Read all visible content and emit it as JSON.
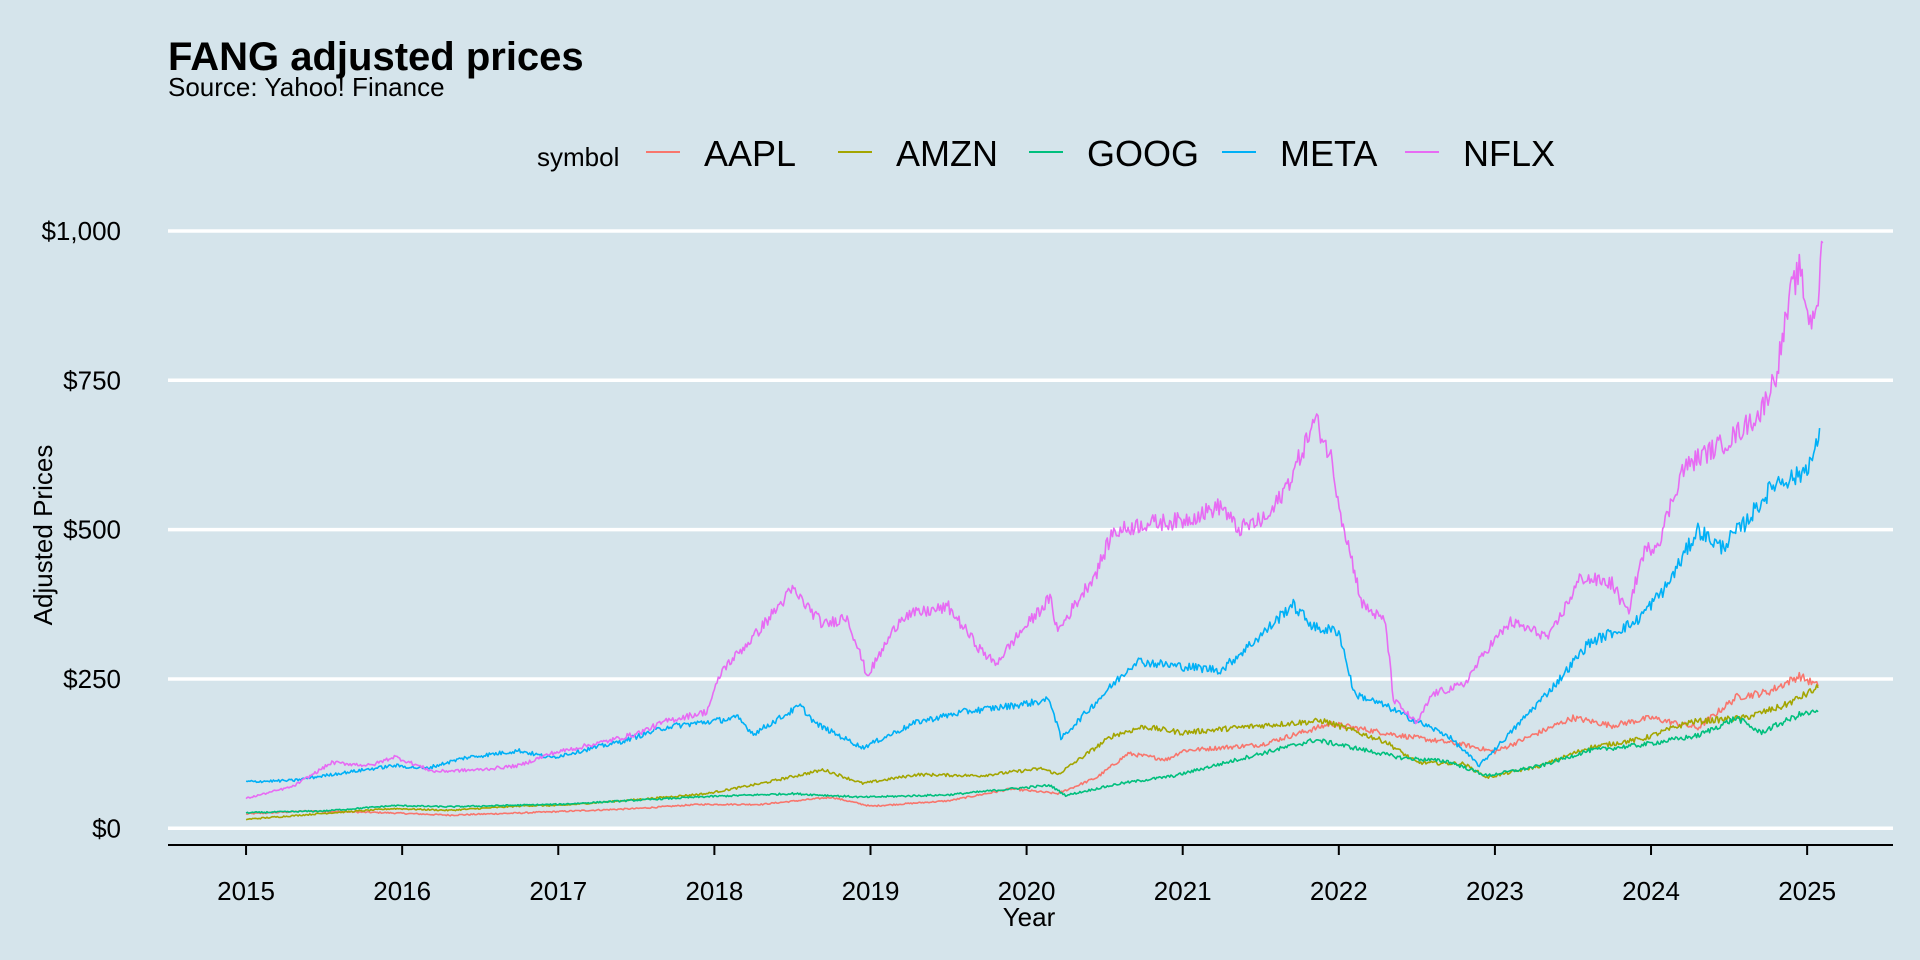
{
  "chart_data": {
    "type": "line",
    "title": "FANG adjusted prices",
    "subtitle": "Source: Yahoo! Finance",
    "xlabel": "Year",
    "ylabel": "Adjusted Prices",
    "legend_title": "symbol",
    "legend_position": "top",
    "xlim": [
      2014.5,
      2025.55
    ],
    "ylim": [
      -28,
      1010
    ],
    "x_ticks": [
      2015,
      2016,
      2017,
      2018,
      2019,
      2020,
      2021,
      2022,
      2023,
      2024,
      2025
    ],
    "x_tick_labels": [
      "2015",
      "2016",
      "2017",
      "2018",
      "2019",
      "2020",
      "2021",
      "2022",
      "2023",
      "2024",
      "2025"
    ],
    "y_ticks": [
      0,
      250,
      500,
      750,
      1000
    ],
    "y_tick_labels": [
      "$0",
      "$250",
      "$500",
      "$750",
      "$1,000"
    ],
    "grid": "horizontal",
    "series": [
      {
        "name": "AAPL",
        "color": "#F8766D",
        "points": [
          [
            2015.0,
            24
          ],
          [
            2015.4,
            29
          ],
          [
            2015.9,
            26
          ],
          [
            2016.3,
            22
          ],
          [
            2016.8,
            26
          ],
          [
            2017.0,
            28
          ],
          [
            2017.5,
            33
          ],
          [
            2017.9,
            40
          ],
          [
            2018.3,
            40
          ],
          [
            2018.75,
            52
          ],
          [
            2019.0,
            37
          ],
          [
            2019.5,
            46
          ],
          [
            2019.9,
            66
          ],
          [
            2020.2,
            58
          ],
          [
            2020.45,
            85
          ],
          [
            2020.65,
            125
          ],
          [
            2020.9,
            115
          ],
          [
            2021.0,
            130
          ],
          [
            2021.5,
            140
          ],
          [
            2021.95,
            175
          ],
          [
            2022.4,
            155
          ],
          [
            2022.8,
            140
          ],
          [
            2023.0,
            128
          ],
          [
            2023.5,
            185
          ],
          [
            2023.75,
            172
          ],
          [
            2024.0,
            185
          ],
          [
            2024.3,
            168
          ],
          [
            2024.55,
            220
          ],
          [
            2024.75,
            228
          ],
          [
            2024.95,
            255
          ],
          [
            2025.07,
            238
          ]
        ]
      },
      {
        "name": "AMZN",
        "color": "#A3A500",
        "points": [
          [
            2015.0,
            15
          ],
          [
            2015.5,
            25
          ],
          [
            2015.95,
            33
          ],
          [
            2016.3,
            30
          ],
          [
            2016.8,
            38
          ],
          [
            2017.0,
            38
          ],
          [
            2017.5,
            48
          ],
          [
            2017.95,
            58
          ],
          [
            2018.3,
            75
          ],
          [
            2018.7,
            98
          ],
          [
            2018.95,
            75
          ],
          [
            2019.3,
            90
          ],
          [
            2019.7,
            88
          ],
          [
            2020.1,
            100
          ],
          [
            2020.2,
            90
          ],
          [
            2020.55,
            155
          ],
          [
            2020.75,
            170
          ],
          [
            2021.0,
            160
          ],
          [
            2021.5,
            172
          ],
          [
            2021.9,
            180
          ],
          [
            2022.3,
            145
          ],
          [
            2022.5,
            110
          ],
          [
            2022.8,
            108
          ],
          [
            2022.95,
            85
          ],
          [
            2023.3,
            105
          ],
          [
            2023.6,
            135
          ],
          [
            2023.95,
            150
          ],
          [
            2024.25,
            178
          ],
          [
            2024.6,
            185
          ],
          [
            2024.85,
            205
          ],
          [
            2025.07,
            235
          ]
        ]
      },
      {
        "name": "GOOG",
        "color": "#00BF7D",
        "points": [
          [
            2015.0,
            26
          ],
          [
            2015.5,
            29
          ],
          [
            2015.95,
            38
          ],
          [
            2016.3,
            36
          ],
          [
            2016.8,
            39
          ],
          [
            2017.0,
            40
          ],
          [
            2017.5,
            47
          ],
          [
            2017.95,
            53
          ],
          [
            2018.5,
            58
          ],
          [
            2018.95,
            52
          ],
          [
            2019.5,
            56
          ],
          [
            2019.9,
            66
          ],
          [
            2020.15,
            72
          ],
          [
            2020.25,
            55
          ],
          [
            2020.6,
            75
          ],
          [
            2020.95,
            88
          ],
          [
            2021.5,
            125
          ],
          [
            2021.85,
            148
          ],
          [
            2022.0,
            140
          ],
          [
            2022.4,
            118
          ],
          [
            2022.7,
            112
          ],
          [
            2022.95,
            88
          ],
          [
            2023.3,
            105
          ],
          [
            2023.6,
            130
          ],
          [
            2023.95,
            140
          ],
          [
            2024.3,
            155
          ],
          [
            2024.55,
            185
          ],
          [
            2024.7,
            160
          ],
          [
            2024.95,
            190
          ],
          [
            2025.07,
            195
          ]
        ]
      },
      {
        "name": "META",
        "color": "#00B0F6",
        "points": [
          [
            2015.0,
            78
          ],
          [
            2015.3,
            80
          ],
          [
            2015.6,
            92
          ],
          [
            2015.95,
            105
          ],
          [
            2016.15,
            100
          ],
          [
            2016.4,
            118
          ],
          [
            2016.75,
            130
          ],
          [
            2016.95,
            118
          ],
          [
            2017.4,
            145
          ],
          [
            2017.7,
            170
          ],
          [
            2017.95,
            178
          ],
          [
            2018.15,
            185
          ],
          [
            2018.25,
            158
          ],
          [
            2018.55,
            205
          ],
          [
            2018.65,
            175
          ],
          [
            2018.95,
            135
          ],
          [
            2019.3,
            178
          ],
          [
            2019.6,
            195
          ],
          [
            2019.9,
            205
          ],
          [
            2020.15,
            215
          ],
          [
            2020.22,
            150
          ],
          [
            2020.55,
            240
          ],
          [
            2020.7,
            280
          ],
          [
            2020.95,
            272
          ],
          [
            2021.25,
            265
          ],
          [
            2021.55,
            335
          ],
          [
            2021.7,
            375
          ],
          [
            2021.85,
            335
          ],
          [
            2022.0,
            330
          ],
          [
            2022.1,
            225
          ],
          [
            2022.3,
            205
          ],
          [
            2022.45,
            185
          ],
          [
            2022.7,
            155
          ],
          [
            2022.9,
            105
          ],
          [
            2023.1,
            160
          ],
          [
            2023.4,
            245
          ],
          [
            2023.6,
            310
          ],
          [
            2023.9,
            345
          ],
          [
            2024.1,
            405
          ],
          [
            2024.3,
            500
          ],
          [
            2024.45,
            470
          ],
          [
            2024.6,
            510
          ],
          [
            2024.8,
            580
          ],
          [
            2024.95,
            590
          ],
          [
            2025.05,
            625
          ],
          [
            2025.08,
            670
          ]
        ]
      },
      {
        "name": "NFLX",
        "color": "#E76BF3",
        "points": [
          [
            2015.0,
            50
          ],
          [
            2015.3,
            70
          ],
          [
            2015.55,
            110
          ],
          [
            2015.8,
            105
          ],
          [
            2015.95,
            120
          ],
          [
            2016.2,
            95
          ],
          [
            2016.5,
            98
          ],
          [
            2016.75,
            105
          ],
          [
            2016.95,
            125
          ],
          [
            2017.3,
            145
          ],
          [
            2017.5,
            158
          ],
          [
            2017.7,
            180
          ],
          [
            2017.95,
            195
          ],
          [
            2018.05,
            265
          ],
          [
            2018.25,
            320
          ],
          [
            2018.5,
            400
          ],
          [
            2018.7,
            340
          ],
          [
            2018.85,
            355
          ],
          [
            2018.98,
            255
          ],
          [
            2019.2,
            355
          ],
          [
            2019.5,
            370
          ],
          [
            2019.7,
            300
          ],
          [
            2019.8,
            275
          ],
          [
            2019.95,
            325
          ],
          [
            2020.15,
            385
          ],
          [
            2020.2,
            330
          ],
          [
            2020.45,
            430
          ],
          [
            2020.55,
            495
          ],
          [
            2020.75,
            510
          ],
          [
            2021.0,
            515
          ],
          [
            2021.25,
            540
          ],
          [
            2021.35,
            500
          ],
          [
            2021.55,
            520
          ],
          [
            2021.7,
            590
          ],
          [
            2021.85,
            685
          ],
          [
            2021.95,
            620
          ],
          [
            2022.02,
            520
          ],
          [
            2022.15,
            375
          ],
          [
            2022.3,
            345
          ],
          [
            2022.35,
            215
          ],
          [
            2022.5,
            175
          ],
          [
            2022.6,
            225
          ],
          [
            2022.8,
            240
          ],
          [
            2022.95,
            300
          ],
          [
            2023.1,
            345
          ],
          [
            2023.35,
            320
          ],
          [
            2023.55,
            420
          ],
          [
            2023.75,
            410
          ],
          [
            2023.85,
            360
          ],
          [
            2023.95,
            460
          ],
          [
            2024.05,
            480
          ],
          [
            2024.2,
            600
          ],
          [
            2024.3,
            620
          ],
          [
            2024.5,
            650
          ],
          [
            2024.7,
            695
          ],
          [
            2024.8,
            760
          ],
          [
            2024.9,
            900
          ],
          [
            2024.95,
            935
          ],
          [
            2025.02,
            845
          ],
          [
            2025.07,
            890
          ],
          [
            2025.1,
            980
          ]
        ]
      }
    ]
  }
}
